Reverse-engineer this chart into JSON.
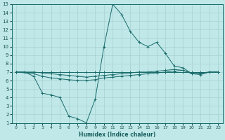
{
  "xlabel": "Humidex (Indice chaleur)",
  "bg_color": "#c0e8e8",
  "grid_color": "#a8d0d0",
  "line_color": "#1a6b6b",
  "xlim": [
    -0.5,
    23.5
  ],
  "ylim": [
    1,
    15
  ],
  "xticks": [
    0,
    1,
    2,
    3,
    4,
    5,
    6,
    7,
    8,
    9,
    10,
    11,
    12,
    13,
    14,
    15,
    16,
    17,
    18,
    19,
    20,
    21,
    22,
    23
  ],
  "yticks": [
    1,
    2,
    3,
    4,
    5,
    6,
    7,
    8,
    9,
    10,
    11,
    12,
    13,
    14,
    15
  ],
  "line1_x": [
    0,
    1,
    2,
    3,
    4,
    5,
    6,
    7,
    8,
    9,
    10,
    11,
    12,
    13,
    14,
    15,
    16,
    17,
    18,
    19,
    20,
    21,
    22,
    23
  ],
  "line1_y": [
    7.0,
    7.0,
    7.0,
    7.0,
    7.0,
    7.0,
    7.0,
    7.0,
    7.0,
    7.0,
    7.0,
    7.0,
    7.0,
    7.0,
    7.0,
    7.0,
    7.0,
    7.0,
    7.0,
    7.0,
    7.0,
    7.0,
    7.0,
    7.0
  ],
  "line2_x": [
    0,
    1,
    2,
    3,
    4,
    5,
    6,
    7,
    8,
    9,
    10,
    11,
    12,
    13,
    14,
    15,
    16,
    17,
    18,
    19,
    20,
    21,
    22,
    23
  ],
  "line2_y": [
    7.0,
    7.0,
    6.5,
    4.5,
    4.3,
    4.0,
    1.8,
    1.5,
    1.0,
    3.8,
    10.0,
    15.0,
    13.8,
    11.8,
    10.5,
    10.0,
    10.5,
    9.2,
    7.7,
    7.5,
    6.8,
    6.8,
    7.0,
    7.0
  ],
  "line3_x": [
    0,
    2,
    3,
    4,
    5,
    6,
    7,
    8,
    9,
    10,
    11,
    12,
    13,
    14,
    15,
    16,
    17,
    18,
    19,
    20,
    21,
    22,
    23
  ],
  "line3_y": [
    7.0,
    6.8,
    6.5,
    6.3,
    6.2,
    6.1,
    6.0,
    6.0,
    6.1,
    6.3,
    6.4,
    6.5,
    6.6,
    6.7,
    6.8,
    6.9,
    7.0,
    7.1,
    7.2,
    6.8,
    6.7,
    7.0,
    7.0
  ],
  "line4_x": [
    0,
    1,
    2,
    3,
    4,
    5,
    6,
    7,
    8,
    9,
    10,
    11,
    12,
    13,
    14,
    15,
    16,
    17,
    18,
    19,
    20,
    21,
    22,
    23
  ],
  "line4_y": [
    7.0,
    7.0,
    7.0,
    6.9,
    6.8,
    6.7,
    6.6,
    6.5,
    6.4,
    6.5,
    6.6,
    6.7,
    6.8,
    6.9,
    7.0,
    7.0,
    7.1,
    7.2,
    7.3,
    7.2,
    6.9,
    6.9,
    7.0,
    7.0
  ]
}
